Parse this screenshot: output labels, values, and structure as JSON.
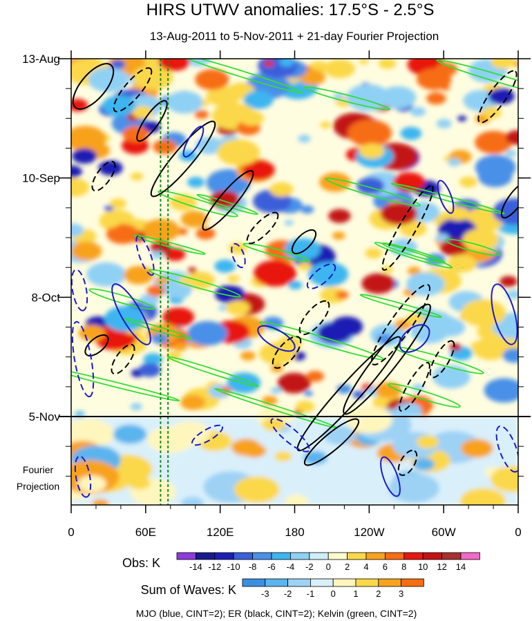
{
  "chart_data": {
    "type": "heatmap",
    "title": "HIRS UTWV anomalies: 17.5°S - 2.5°S",
    "subtitle": "13-Aug-2011 to 5-Nov-2011 + 21-day Fourier Projection",
    "x_tick_labels": [
      "0",
      "60E",
      "120E",
      "180",
      "120W",
      "60W",
      "0"
    ],
    "x_ticks_deg": [
      0,
      60,
      120,
      180,
      240,
      300,
      360
    ],
    "x_range_deg": [
      0,
      360
    ],
    "y_tick_labels": [
      "13-Aug",
      "10-Sep",
      "8-Oct",
      "5-Nov"
    ],
    "y_ticks_day": [
      0,
      28,
      56,
      84
    ],
    "y_range_day": [
      0,
      105
    ],
    "observation_end_day": 84,
    "projection_label_line1": "Fourier",
    "projection_label_line2": "Projection",
    "reference_longitudes_deg": [
      72,
      78
    ],
    "obs_colorbar": {
      "label": "Obs: K",
      "levels": [
        -14,
        -12,
        -10,
        -8,
        -6,
        -4,
        -2,
        0,
        2,
        4,
        6,
        8,
        10,
        12,
        14
      ],
      "level_labels": [
        "-14",
        "-12",
        "-10",
        "-8",
        "-6",
        "-4",
        "-2",
        "0",
        "2",
        "4",
        "6",
        "8",
        "10",
        "12",
        "14"
      ],
      "colors": [
        "#8c3cd9",
        "#1a1a8c",
        "#1f1fb4",
        "#3a5fd9",
        "#4a90e8",
        "#3cb5f0",
        "#8fd0f5",
        "#cdeefb",
        "#ffffcc",
        "#fbd84a",
        "#f8a21e",
        "#f76d12",
        "#e8190f",
        "#c21414",
        "#a83030",
        "#f06ac8"
      ]
    },
    "waves_colorbar": {
      "label": "Sum of Waves: K",
      "levels": [
        -3,
        -2,
        -1,
        0,
        1,
        2,
        3
      ],
      "level_labels": [
        "-3",
        "-2",
        "-1",
        "0",
        "1",
        "2",
        "3"
      ],
      "colors": [
        "#3a8fe0",
        "#5ab4ee",
        "#9dd2f5",
        "#d9f0fb",
        "#fff6bd",
        "#fbd84a",
        "#f8a21e",
        "#f76d12"
      ]
    },
    "footnote": "MJO (blue, CINT=2); ER (black, CINT=2); Kelvin (green, CINT=2)",
    "contour_series": [
      {
        "name": "MJO",
        "color": "#1a1acc",
        "cint": 2
      },
      {
        "name": "ER",
        "color": "#000000",
        "cint": 2
      },
      {
        "name": "Kelvin",
        "color": "#33dd33",
        "cint": 2
      }
    ]
  }
}
